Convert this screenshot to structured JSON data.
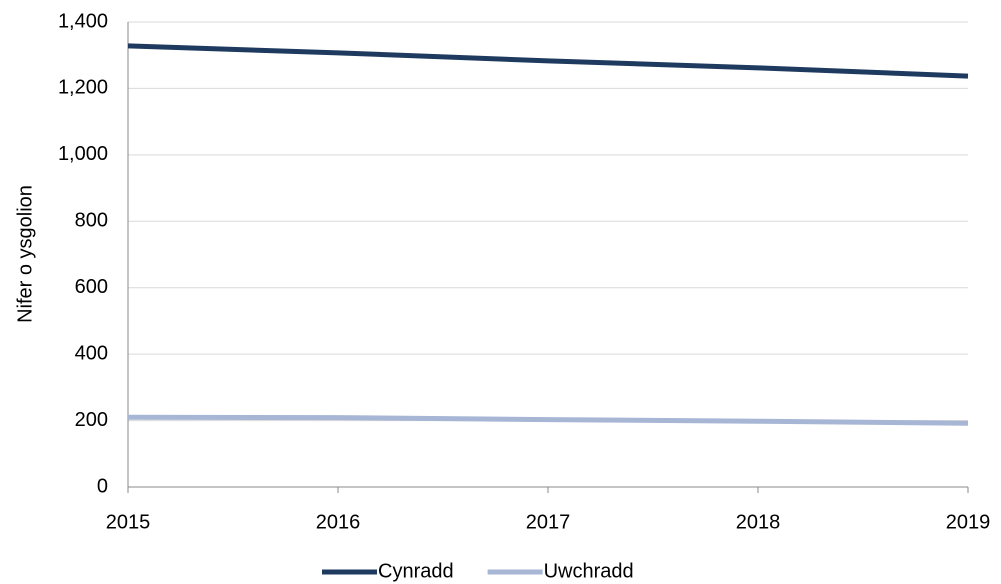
{
  "chart_data": {
    "type": "line",
    "y_label": "Nifer o ysgolion",
    "x": [
      2015,
      2016,
      2017,
      2018,
      2019
    ],
    "xlim": [
      2015,
      2019
    ],
    "xticks": [
      2015,
      2016,
      2017,
      2018,
      2019
    ],
    "ylim": [
      0,
      1400
    ],
    "yticks": [
      0,
      200,
      400,
      600,
      800,
      {
        "value": 1000,
        "label": "1,000"
      },
      {
        "value": 1200,
        "label": "1,200"
      },
      {
        "value": 1400,
        "label": "1,400"
      }
    ],
    "grid": true,
    "legend": "bottom",
    "series": [
      {
        "name": "Cynradd",
        "color": "#1f3a5f",
        "values": [
          1328,
          1307,
          1283,
          1262,
          1237
        ]
      },
      {
        "name": "Uwchradd",
        "color": "#a6b6d4",
        "values": [
          210,
          209,
          203,
          198,
          192
        ]
      }
    ]
  }
}
